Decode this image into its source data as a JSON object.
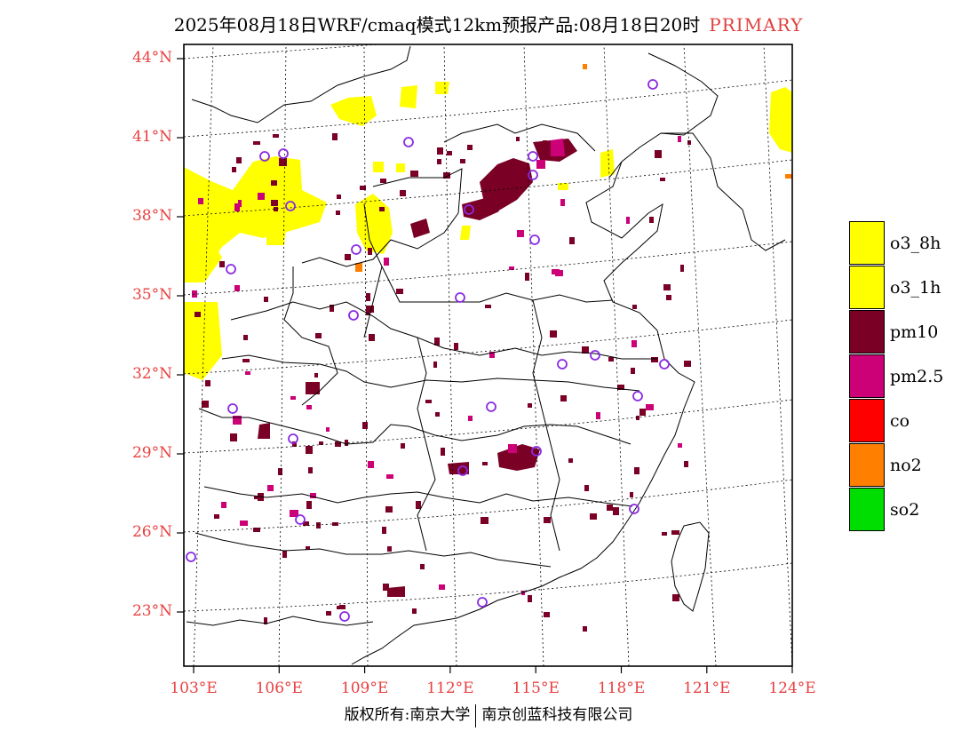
{
  "title": {
    "main": "2025年08月18日WRF/cmaq模式12km预报产品:08月18日20时",
    "tag": "PRIMARY",
    "tag_color": "#e04040"
  },
  "axes": {
    "lat_labels": [
      "44°N",
      "41°N",
      "38°N",
      "35°N",
      "32°N",
      "29°N",
      "26°N",
      "23°N"
    ],
    "lon_labels": [
      "103°E",
      "106°E",
      "109°E",
      "112°E",
      "115°E",
      "118°E",
      "121°E",
      "124°E"
    ],
    "label_color": "#e84040"
  },
  "legend": {
    "items": [
      {
        "label": "o3_8h",
        "color": "#ffff00"
      },
      {
        "label": "o3_1h",
        "color": "#ffff00"
      },
      {
        "label": "pm10",
        "color": "#7a0026"
      },
      {
        "label": "pm2.5",
        "color": "#cc0077"
      },
      {
        "label": "co",
        "color": "#ff0000"
      },
      {
        "label": "no2",
        "color": "#ff8000"
      },
      {
        "label": "so2",
        "color": "#00dd00"
      }
    ]
  },
  "pollutant_colors": {
    "o3": "#ffff00",
    "pm10": "#7a0026",
    "pm25": "#cc0077",
    "no2": "#ff8000",
    "station_marker": "#8a2be2"
  },
  "copyright": {
    "left": "版权所有:南京大学",
    "right": "南京创蓝科技有限公司"
  }
}
